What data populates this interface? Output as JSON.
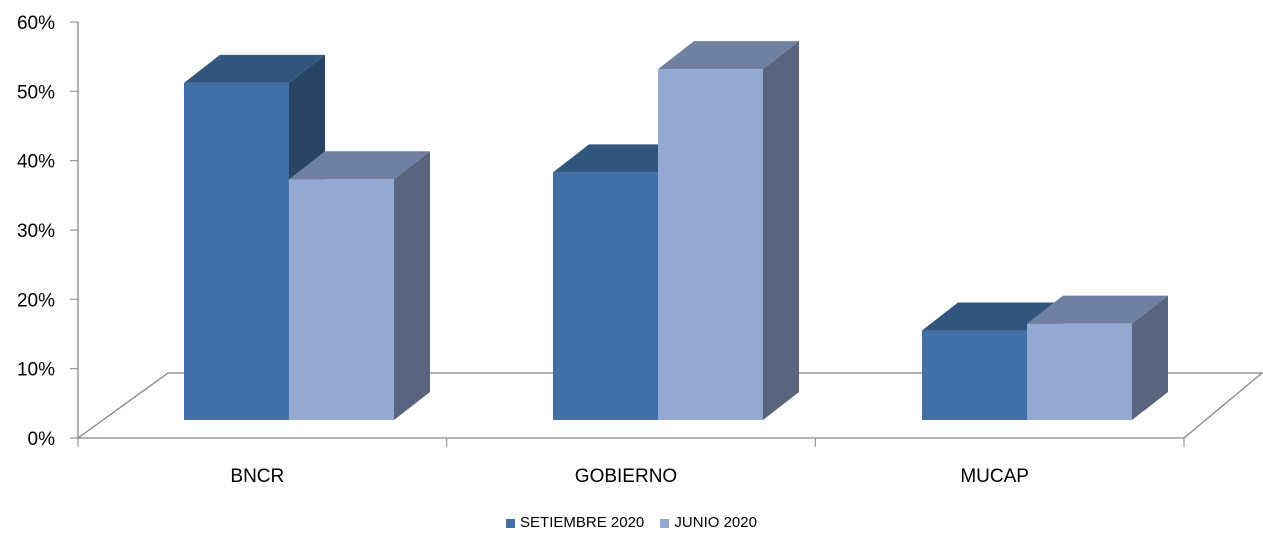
{
  "chart_data": {
    "type": "bar",
    "categories": [
      "BNCR",
      "GOBIERNO",
      "MUCAP"
    ],
    "series": [
      {
        "name": "SETIEMBRE 2020",
        "values": [
          49,
          36,
          13
        ],
        "color": "#4270A6"
      },
      {
        "name": "JUNIO 2020",
        "values": [
          35,
          51,
          14
        ],
        "color": "#94A9D2"
      }
    ],
    "y_ticks": [
      "0%",
      "10%",
      "20%",
      "30%",
      "40%",
      "50%",
      "60%"
    ],
    "ylim": [
      0,
      60
    ],
    "legend_position": "bottom",
    "grid": false,
    "title": "",
    "xlabel": "",
    "ylabel": ""
  }
}
